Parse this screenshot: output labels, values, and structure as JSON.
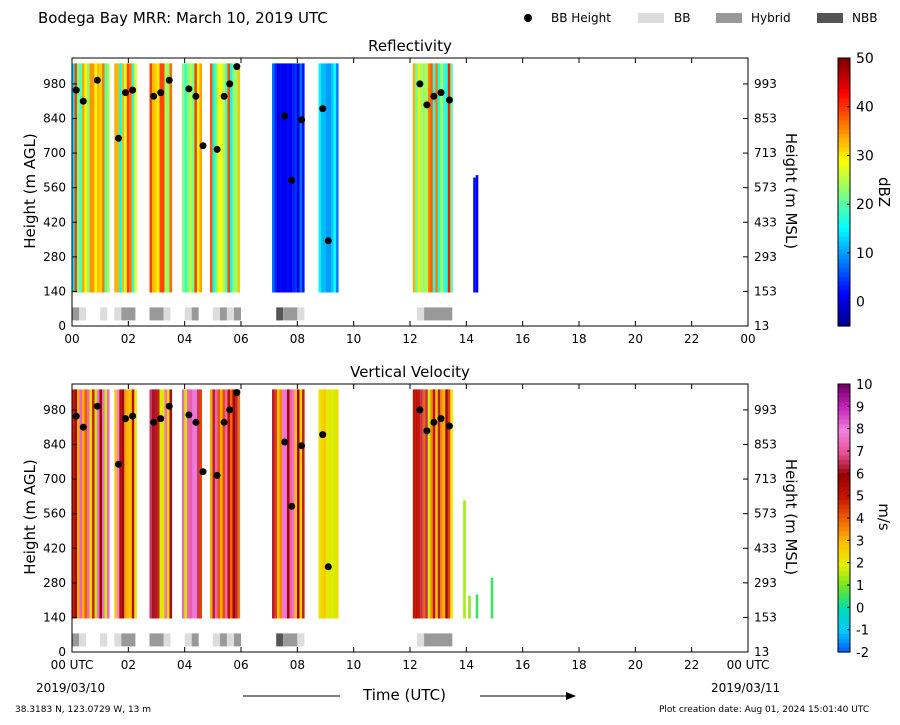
{
  "header": {
    "title": "Bodega Bay MRR:  March 10, 2019 UTC"
  },
  "legend": {
    "bb_height": "BB Height",
    "bb": "BB",
    "hybrid": "Hybrid",
    "nbb": "NBB",
    "colors": {
      "bb": "#dcdcdc",
      "hybrid": "#999999",
      "nbb": "#555555"
    }
  },
  "footer": {
    "location": "38.3183 N, 123.0729 W, 13 m",
    "creation": "Plot creation date: Aug 01, 2024 15:01:40 UTC",
    "start_date": "2019/03/10",
    "end_date": "2019/03/11"
  },
  "chart_data": [
    {
      "type": "heatmap",
      "title": "Reflectivity",
      "ylabel": "Height (m AGL)",
      "ylabel_right": "Height (m MSL)",
      "colorbar_label": "dBZ",
      "colorbar_range": [
        -5,
        50
      ],
      "colorbar_ticks": [
        "50",
        "40",
        "30",
        "20",
        "10",
        "0"
      ],
      "xlim": [
        0,
        24
      ],
      "ylim": [
        0,
        1085
      ],
      "x_ticks": [
        "00",
        "02",
        "04",
        "06",
        "08",
        "10",
        "12",
        "14",
        "16",
        "18",
        "20",
        "22",
        "00"
      ],
      "y_ticks_left": [
        "980",
        "840",
        "700",
        "560",
        "420",
        "280",
        "140",
        "0"
      ],
      "y_ticks_right": [
        "993",
        "853",
        "713",
        "573",
        "433",
        "293",
        "153",
        "13"
      ],
      "data_spans_hours": [
        [
          0.0,
          1.25
        ],
        [
          1.5,
          2.25
        ],
        [
          2.75,
          3.5
        ],
        [
          3.9,
          4.6
        ],
        [
          4.9,
          5.95
        ],
        [
          7.1,
          8.25
        ],
        [
          8.75,
          9.4
        ],
        [
          12.1,
          13.5
        ],
        [
          13.8,
          15.1
        ]
      ],
      "bb_height_points": [
        [
          0.15,
          955
        ],
        [
          0.4,
          910
        ],
        [
          0.9,
          995
        ],
        [
          1.65,
          760
        ],
        [
          1.9,
          945
        ],
        [
          2.15,
          955
        ],
        [
          2.9,
          930
        ],
        [
          3.15,
          945
        ],
        [
          3.45,
          995
        ],
        [
          4.15,
          960
        ],
        [
          4.4,
          930
        ],
        [
          4.65,
          730
        ],
        [
          5.15,
          715
        ],
        [
          5.4,
          930
        ],
        [
          5.6,
          980
        ],
        [
          5.85,
          1050
        ],
        [
          7.55,
          850
        ],
        [
          7.8,
          590
        ],
        [
          8.15,
          835
        ],
        [
          8.9,
          880
        ],
        [
          9.1,
          345
        ],
        [
          12.35,
          980
        ],
        [
          12.6,
          895
        ],
        [
          12.85,
          930
        ],
        [
          13.1,
          945
        ],
        [
          13.4,
          915
        ]
      ],
      "bb_classification": [
        [
          0.0,
          0.25,
          "hybrid"
        ],
        [
          0.25,
          0.5,
          "bb"
        ],
        [
          1.0,
          1.25,
          "bb"
        ],
        [
          1.5,
          1.75,
          "bb"
        ],
        [
          1.75,
          2.25,
          "hybrid"
        ],
        [
          2.75,
          3.25,
          "hybrid"
        ],
        [
          3.25,
          3.5,
          "bb"
        ],
        [
          4.0,
          4.25,
          "bb"
        ],
        [
          4.25,
          4.5,
          "hybrid"
        ],
        [
          5.0,
          5.25,
          "bb"
        ],
        [
          5.25,
          5.5,
          "hybrid"
        ],
        [
          5.5,
          5.75,
          "bb"
        ],
        [
          5.75,
          6.0,
          "hybrid"
        ],
        [
          7.25,
          7.5,
          "nbb"
        ],
        [
          7.5,
          8.0,
          "hybrid"
        ],
        [
          8.0,
          8.25,
          "bb"
        ],
        [
          12.25,
          12.5,
          "bb"
        ],
        [
          12.5,
          13.5,
          "hybrid"
        ]
      ]
    },
    {
      "type": "heatmap",
      "title": "Vertical Velocity",
      "ylabel": "Height (m AGL)",
      "ylabel_right": "Height (m MSL)",
      "colorbar_label": "m/s",
      "colorbar_range": [
        -2,
        10
      ],
      "colorbar_ticks": [
        "10",
        "9",
        "8",
        "7",
        "6",
        "5",
        "4",
        "3",
        "2",
        "1",
        "0",
        "-1",
        "-2"
      ],
      "xlim": [
        0,
        24
      ],
      "ylim": [
        0,
        1085
      ],
      "x_ticks": [
        "00 UTC",
        "02",
        "04",
        "06",
        "08",
        "10",
        "12",
        "14",
        "16",
        "18",
        "20",
        "22",
        "00 UTC"
      ],
      "y_ticks_left": [
        "980",
        "840",
        "700",
        "560",
        "420",
        "280",
        "140",
        "0"
      ],
      "y_ticks_right": [
        "993",
        "853",
        "713",
        "573",
        "433",
        "293",
        "153",
        "13"
      ],
      "xlabel": "Time (UTC)",
      "data_spans_hours": [
        [
          0.0,
          1.25
        ],
        [
          1.5,
          2.25
        ],
        [
          2.75,
          3.5
        ],
        [
          3.9,
          4.6
        ],
        [
          4.9,
          5.95
        ],
        [
          7.1,
          8.25
        ],
        [
          8.75,
          9.4
        ],
        [
          12.1,
          13.5
        ],
        [
          13.8,
          15.1
        ]
      ],
      "bb_height_points": [
        [
          0.15,
          955
        ],
        [
          0.4,
          910
        ],
        [
          0.9,
          995
        ],
        [
          1.65,
          760
        ],
        [
          1.9,
          945
        ],
        [
          2.15,
          955
        ],
        [
          2.9,
          930
        ],
        [
          3.15,
          945
        ],
        [
          3.45,
          995
        ],
        [
          4.15,
          960
        ],
        [
          4.4,
          930
        ],
        [
          4.65,
          730
        ],
        [
          5.15,
          715
        ],
        [
          5.4,
          930
        ],
        [
          5.6,
          980
        ],
        [
          5.85,
          1050
        ],
        [
          7.55,
          850
        ],
        [
          7.8,
          590
        ],
        [
          8.15,
          835
        ],
        [
          8.9,
          880
        ],
        [
          9.1,
          345
        ],
        [
          12.35,
          980
        ],
        [
          12.6,
          895
        ],
        [
          12.85,
          930
        ],
        [
          13.1,
          945
        ],
        [
          13.4,
          915
        ]
      ],
      "bb_classification": [
        [
          0.0,
          0.25,
          "hybrid"
        ],
        [
          0.25,
          0.5,
          "bb"
        ],
        [
          1.0,
          1.25,
          "bb"
        ],
        [
          1.5,
          1.75,
          "bb"
        ],
        [
          1.75,
          2.25,
          "hybrid"
        ],
        [
          2.75,
          3.25,
          "hybrid"
        ],
        [
          3.25,
          3.5,
          "bb"
        ],
        [
          4.0,
          4.25,
          "bb"
        ],
        [
          4.25,
          4.5,
          "hybrid"
        ],
        [
          5.0,
          5.25,
          "bb"
        ],
        [
          5.25,
          5.5,
          "hybrid"
        ],
        [
          5.5,
          5.75,
          "bb"
        ],
        [
          5.75,
          6.0,
          "hybrid"
        ],
        [
          7.25,
          7.5,
          "nbb"
        ],
        [
          7.5,
          8.0,
          "hybrid"
        ],
        [
          8.0,
          8.25,
          "bb"
        ],
        [
          12.25,
          12.5,
          "bb"
        ],
        [
          12.5,
          13.5,
          "hybrid"
        ]
      ]
    }
  ]
}
